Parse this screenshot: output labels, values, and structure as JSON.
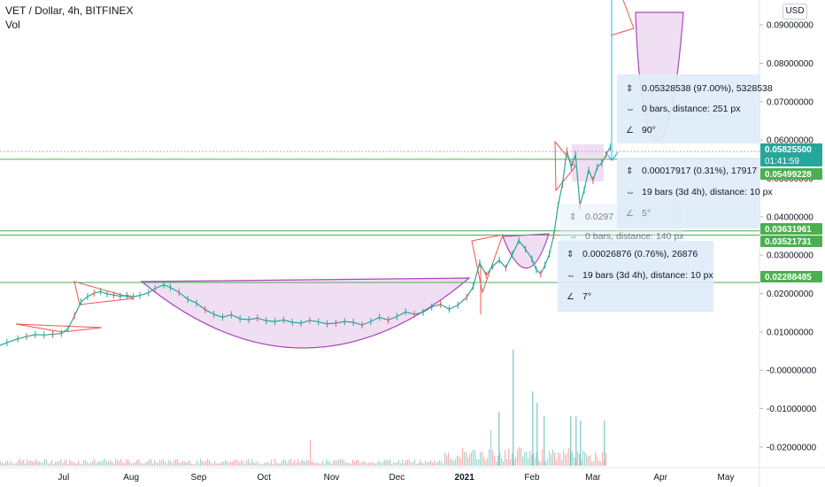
{
  "header": {
    "title": "VET / Dollar, 4h, BITFINEX",
    "indicator": "Vol"
  },
  "currency_button": "USD",
  "price_badges": [
    {
      "value": "0.05825500",
      "color": "#26a69a",
      "sub": "01:41:59"
    },
    {
      "value": "0.05499228",
      "color": "#4caf50"
    },
    {
      "value": "0.03631961",
      "color": "#4caf50"
    },
    {
      "value": "0.03521731",
      "color": "#4caf50"
    },
    {
      "value": "0.02288485",
      "color": "#4caf50"
    }
  ],
  "measure_tooltips": [
    {
      "id": "big",
      "price": "0.05328538 (97.00%), 5328538",
      "bars": "0 bars, distance: 251 px",
      "angle": "90°",
      "faint": false
    },
    {
      "id": "top",
      "price": "0.00017917 (0.31%), 17917",
      "bars": "19 bars (3d 4h), distance: 10 px",
      "angle": "5°",
      "faint": false
    },
    {
      "id": "mid",
      "price": "0.0297",
      "bars": "0 bars, distance: 140 px",
      "angle": "",
      "faint": false
    },
    {
      "id": "low",
      "price": "0.00026876 (0.76%), 26876",
      "bars": "19 bars (3d 4h), distance: 10 px",
      "angle": "7°",
      "faint": false
    }
  ],
  "ghost_texts": [
    "0.00017917 (0.31%), 17917",
    "19 bars (3d 4h), distance: 10 px",
    "0.0297… (…%), 2973527",
    "0 bars, distance: 140 px"
  ],
  "chart_data": {
    "type": "line",
    "title": "VET / Dollar, 4h, BITFINEX",
    "y_ticks": [
      "0.09000000",
      "0.08000000",
      "0.07000000",
      "0.06000000",
      "0.05000000",
      "0.04000000",
      "0.03000000",
      "0.02000000",
      "0.01000000",
      "-0.00000000",
      "-0.01000000",
      "-0.02000000"
    ],
    "y_tick_values": [
      0.09,
      0.08,
      0.07,
      0.06,
      0.05,
      0.04,
      0.03,
      0.02,
      0.01,
      0.0,
      -0.01,
      -0.02
    ],
    "ylim": [
      -0.0235,
      0.0965
    ],
    "x_ticks": [
      "Jul",
      "Aug",
      "Sep",
      "Oct",
      "Nov",
      "Dec",
      "2021",
      "Feb",
      "Mar",
      "Apr",
      "May"
    ],
    "x_dates": [
      "2020-07-01",
      "2020-08-01",
      "2020-09-01",
      "2020-10-01",
      "2020-11-01",
      "2020-12-01",
      "2021-01-01",
      "2021-02-01",
      "2021-03-01",
      "2021-04-01",
      "2021-05-01"
    ],
    "horizontal_levels": [
      0.05499228,
      0.03631961,
      0.03521731,
      0.02288485
    ],
    "last_price": 0.058255,
    "series": [
      {
        "values": [
          [
            "2020-06-01",
            0.0063
          ],
          [
            "2020-06-05",
            0.0072
          ],
          [
            "2020-06-10",
            0.0082
          ],
          [
            "2020-06-14",
            0.0088
          ],
          [
            "2020-06-18",
            0.0093
          ],
          [
            "2020-06-22",
            0.0092
          ],
          [
            "2020-06-26",
            0.0094
          ],
          [
            "2020-06-30",
            0.0096
          ],
          [
            "2020-07-03",
            0.0108
          ],
          [
            "2020-07-06",
            0.0142
          ],
          [
            "2020-07-09",
            0.0178
          ],
          [
            "2020-07-12",
            0.0192
          ],
          [
            "2020-07-15",
            0.0201
          ],
          [
            "2020-07-18",
            0.0205
          ],
          [
            "2020-07-21",
            0.0199
          ],
          [
            "2020-07-24",
            0.0196
          ],
          [
            "2020-07-27",
            0.0193
          ],
          [
            "2020-07-30",
            0.0195
          ],
          [
            "2020-08-02",
            0.0192
          ],
          [
            "2020-08-05",
            0.0195
          ],
          [
            "2020-08-09",
            0.0202
          ],
          [
            "2020-08-12",
            0.0213
          ],
          [
            "2020-08-16",
            0.0223
          ],
          [
            "2020-08-19",
            0.0216
          ],
          [
            "2020-08-23",
            0.0203
          ],
          [
            "2020-08-27",
            0.0185
          ],
          [
            "2020-08-31",
            0.0175
          ],
          [
            "2020-09-04",
            0.0158
          ],
          [
            "2020-09-08",
            0.0146
          ],
          [
            "2020-09-12",
            0.0138
          ],
          [
            "2020-09-16",
            0.0145
          ],
          [
            "2020-09-20",
            0.0134
          ],
          [
            "2020-09-24",
            0.0132
          ],
          [
            "2020-09-28",
            0.0136
          ],
          [
            "2020-10-02",
            0.0129
          ],
          [
            "2020-10-06",
            0.0127
          ],
          [
            "2020-10-10",
            0.0131
          ],
          [
            "2020-10-14",
            0.0125
          ],
          [
            "2020-10-18",
            0.0123
          ],
          [
            "2020-10-22",
            0.013
          ],
          [
            "2020-10-26",
            0.0126
          ],
          [
            "2020-10-30",
            0.0121
          ],
          [
            "2020-11-03",
            0.0123
          ],
          [
            "2020-11-07",
            0.0127
          ],
          [
            "2020-11-11",
            0.0125
          ],
          [
            "2020-11-15",
            0.0118
          ],
          [
            "2020-11-19",
            0.0127
          ],
          [
            "2020-11-23",
            0.0138
          ],
          [
            "2020-11-27",
            0.0131
          ],
          [
            "2020-12-01",
            0.014
          ],
          [
            "2020-12-05",
            0.0152
          ],
          [
            "2020-12-09",
            0.0146
          ],
          [
            "2020-12-13",
            0.0151
          ],
          [
            "2020-12-17",
            0.0165
          ],
          [
            "2020-12-21",
            0.0172
          ],
          [
            "2020-12-25",
            0.0159
          ],
          [
            "2020-12-29",
            0.017
          ],
          [
            "2021-01-02",
            0.019
          ],
          [
            "2021-01-05",
            0.0218
          ],
          [
            "2021-01-08",
            0.028
          ],
          [
            "2021-01-11",
            0.0248
          ],
          [
            "2021-01-14",
            0.0271
          ],
          [
            "2021-01-17",
            0.0287
          ],
          [
            "2021-01-20",
            0.0267
          ],
          [
            "2021-01-23",
            0.0302
          ],
          [
            "2021-01-26",
            0.0338
          ],
          [
            "2021-01-29",
            0.0316
          ],
          [
            "2021-02-01",
            0.029
          ],
          [
            "2021-02-03",
            0.0262
          ],
          [
            "2021-02-05",
            0.0251
          ],
          [
            "2021-02-07",
            0.0274
          ],
          [
            "2021-02-09",
            0.0303
          ],
          [
            "2021-02-11",
            0.0352
          ],
          [
            "2021-02-13",
            0.043
          ],
          [
            "2021-02-15",
            0.0485
          ],
          [
            "2021-02-17",
            0.0572
          ],
          [
            "2021-02-19",
            0.053
          ],
          [
            "2021-02-21",
            0.0562
          ],
          [
            "2021-02-23",
            0.043
          ],
          [
            "2021-02-25",
            0.047
          ],
          [
            "2021-02-27",
            0.0522
          ],
          [
            "2021-03-01",
            0.0495
          ],
          [
            "2021-03-03",
            0.053
          ],
          [
            "2021-03-05",
            0.054
          ],
          [
            "2021-03-07",
            0.0562
          ],
          [
            "2021-03-09",
            0.0582
          ]
        ]
      }
    ]
  }
}
